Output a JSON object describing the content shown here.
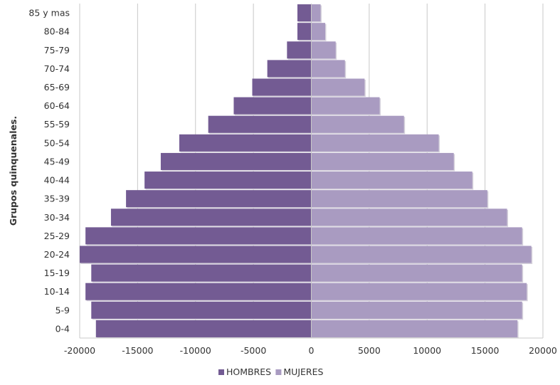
{
  "chart_data": {
    "type": "bar",
    "orientation": "horizontal",
    "layout": "population-pyramid",
    "ylabel": "Grupos  quinquenales.",
    "xlim": [
      -20000,
      20000
    ],
    "xticks": [
      "-20000",
      "-15000",
      "-10000",
      "-5000",
      "0",
      "5000",
      "10000",
      "15000",
      "20000"
    ],
    "xtick_values": [
      -20000,
      -15000,
      -10000,
      -5000,
      0,
      5000,
      10000,
      15000,
      20000
    ],
    "grid": "vertical",
    "legend": "bottom-center",
    "categories": [
      "0-4",
      "5-9",
      "10-14",
      "15-19",
      "20-24",
      "25-29",
      "30-34",
      "35-39",
      "40-44",
      "45-49",
      "50-54",
      "55-59",
      "60-64",
      "65-69",
      "70-74",
      "75-79",
      "80-84",
      "85 y mas"
    ],
    "series": [
      {
        "name": "HOMBRES",
        "color": "#735b93",
        "values": [
          -18600,
          -19000,
          -19500,
          -19000,
          -20000,
          -19500,
          -17300,
          -16000,
          -14400,
          -13000,
          -11400,
          -8900,
          -6700,
          -5100,
          -3800,
          -2100,
          -1200,
          -1200
        ]
      },
      {
        "name": "MUJERES",
        "color": "#a99bc1",
        "values": [
          17800,
          18200,
          18600,
          18200,
          19000,
          18200,
          16900,
          15200,
          13900,
          12300,
          11000,
          8000,
          5900,
          4600,
          2900,
          2100,
          1200,
          800
        ]
      }
    ]
  }
}
